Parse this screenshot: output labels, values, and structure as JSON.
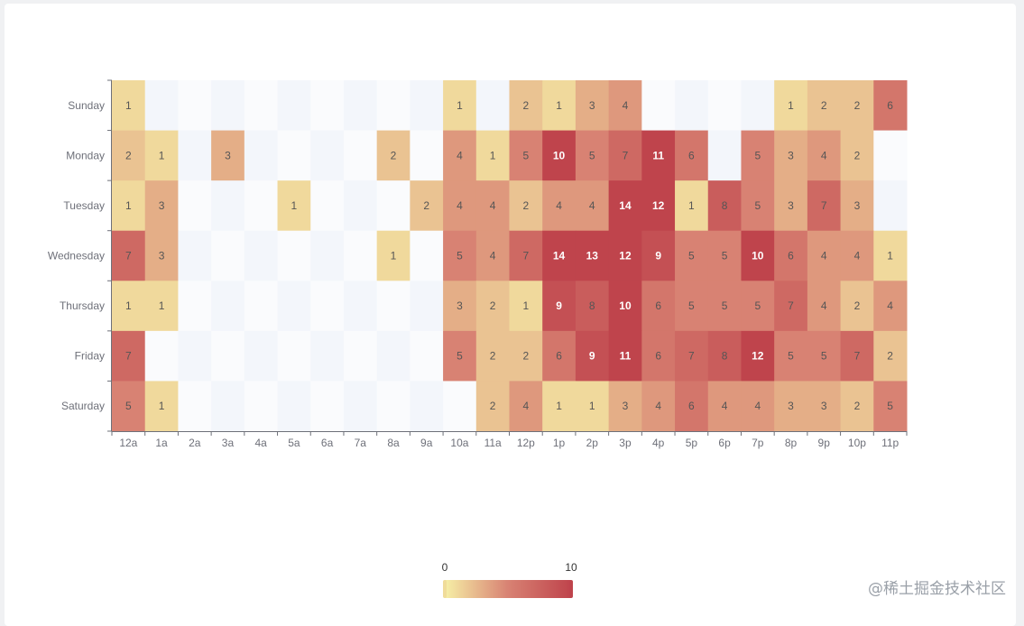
{
  "chart_data": {
    "type": "heatmap",
    "title": "",
    "x_categories": [
      "12a",
      "1a",
      "2a",
      "3a",
      "4a",
      "5a",
      "6a",
      "7a",
      "8a",
      "9a",
      "10a",
      "11a",
      "12p",
      "1p",
      "2p",
      "3p",
      "4p",
      "5p",
      "6p",
      "7p",
      "8p",
      "9p",
      "10p",
      "11p"
    ],
    "y_categories": [
      "Sunday",
      "Monday",
      "Tuesday",
      "Wednesday",
      "Thursday",
      "Friday",
      "Saturday"
    ],
    "values": [
      [
        1,
        0,
        0,
        0,
        0,
        0,
        0,
        0,
        0,
        0,
        1,
        0,
        2,
        1,
        3,
        4,
        0,
        0,
        0,
        0,
        1,
        2,
        2,
        6
      ],
      [
        2,
        1,
        0,
        3,
        0,
        0,
        0,
        0,
        2,
        0,
        4,
        1,
        5,
        10,
        5,
        7,
        11,
        6,
        0,
        5,
        3,
        4,
        2,
        0
      ],
      [
        1,
        3,
        0,
        0,
        0,
        1,
        0,
        0,
        0,
        2,
        4,
        4,
        2,
        4,
        4,
        14,
        12,
        1,
        8,
        5,
        3,
        7,
        3,
        0
      ],
      [
        7,
        3,
        0,
        0,
        0,
        0,
        0,
        0,
        1,
        0,
        5,
        4,
        7,
        14,
        13,
        12,
        9,
        5,
        5,
        10,
        6,
        4,
        4,
        1
      ],
      [
        1,
        1,
        0,
        0,
        0,
        0,
        0,
        0,
        0,
        0,
        3,
        2,
        1,
        9,
        8,
        10,
        6,
        5,
        5,
        5,
        7,
        4,
        2,
        4
      ],
      [
        7,
        0,
        0,
        0,
        0,
        0,
        0,
        0,
        0,
        0,
        5,
        2,
        2,
        6,
        9,
        11,
        6,
        7,
        8,
        12,
        5,
        5,
        7,
        2
      ],
      [
        5,
        1,
        0,
        0,
        0,
        0,
        0,
        0,
        0,
        0,
        0,
        2,
        4,
        1,
        1,
        3,
        4,
        6,
        4,
        4,
        3,
        3,
        2,
        5
      ]
    ],
    "visual_map": {
      "min": 0,
      "max": 10,
      "min_label": "0",
      "max_label": "10",
      "colors": [
        "#f6efa6",
        "#d88273",
        "#bf444c"
      ]
    },
    "zero_color": "#f3f6fb",
    "grid": false,
    "legend": "none"
  },
  "watermark": "@稀土掘金技术社区"
}
